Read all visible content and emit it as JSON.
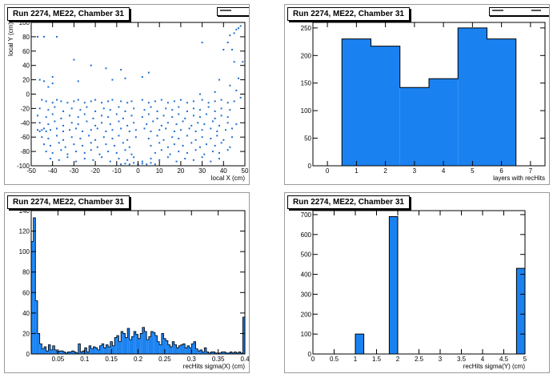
{
  "panels": [
    {
      "title": "Run 2274, ME22, Chamber 31"
    },
    {
      "title": "Run 2274, ME22, Chamber 31"
    },
    {
      "title": "Run 2274, ME22, Chamber 31"
    },
    {
      "title": "Run 2274, ME22, Chamber 31"
    }
  ],
  "colors": {
    "fill": "#1a82f0",
    "edge": "#000000",
    "frame": "#9a9a9a",
    "marker": "#1e6fd0"
  },
  "chart_data": [
    {
      "type": "scatter",
      "title": "Run 2274, ME22, Chamber 31",
      "xlabel": "local X (cm)",
      "ylabel": "local Y (cm)",
      "xlim": [
        -50,
        50
      ],
      "ylim": [
        -100,
        100
      ],
      "xticks": [
        -50,
        -40,
        -30,
        -20,
        -10,
        0,
        10,
        20,
        30,
        40,
        50
      ],
      "yticks": [
        -100,
        -80,
        -60,
        -40,
        -20,
        0,
        20,
        40,
        60,
        80,
        100
      ],
      "points": [
        [
          -47,
          80
        ],
        [
          -44,
          80
        ],
        [
          -38,
          80
        ],
        [
          -30,
          48
        ],
        [
          -22,
          40
        ],
        [
          -15,
          36
        ],
        [
          -8,
          34
        ],
        [
          5,
          30
        ],
        [
          30,
          72
        ],
        [
          40,
          62
        ],
        [
          44,
          62
        ],
        [
          45,
          85
        ],
        [
          46,
          90
        ],
        [
          47,
          92
        ],
        [
          48,
          95
        ],
        [
          43,
          82
        ],
        [
          42,
          72
        ],
        [
          45,
          45
        ],
        [
          47,
          22
        ],
        [
          49,
          45
        ],
        [
          -46,
          20
        ],
        [
          -44,
          18
        ],
        [
          -42,
          10
        ],
        [
          -40,
          15
        ],
        [
          -28,
          18
        ],
        [
          -12,
          20
        ],
        [
          -6,
          22
        ],
        [
          -40,
          24
        ],
        [
          2,
          24
        ],
        [
          38,
          20
        ],
        [
          43,
          12
        ],
        [
          46,
          5
        ],
        [
          48,
          -5
        ],
        [
          36,
          3
        ],
        [
          29,
          0
        ],
        [
          -45,
          -8
        ],
        [
          -43,
          -10
        ],
        [
          -40,
          -12
        ],
        [
          -38,
          -8
        ],
        [
          -36,
          -10
        ],
        [
          -33,
          -12
        ],
        [
          -30,
          -10
        ],
        [
          -28,
          -8
        ],
        [
          -25,
          -12
        ],
        [
          -22,
          -10
        ],
        [
          -20,
          -8
        ],
        [
          -17,
          -12
        ],
        [
          -14,
          -10
        ],
        [
          -12,
          -8
        ],
        [
          -8,
          -10
        ],
        [
          -5,
          -12
        ],
        [
          -3,
          -10
        ],
        [
          2,
          -8
        ],
        [
          5,
          -12
        ],
        [
          8,
          -10
        ],
        [
          11,
          -8
        ],
        [
          14,
          -12
        ],
        [
          17,
          -10
        ],
        [
          20,
          -8
        ],
        [
          23,
          -12
        ],
        [
          26,
          -10
        ],
        [
          30,
          -8
        ],
        [
          33,
          -12
        ],
        [
          36,
          -10
        ],
        [
          39,
          -8
        ],
        [
          42,
          -12
        ],
        [
          45,
          -10
        ],
        [
          -46,
          -20
        ],
        [
          -42,
          -22
        ],
        [
          -39,
          -18
        ],
        [
          -35,
          -24
        ],
        [
          -31,
          -20
        ],
        [
          -27,
          -22
        ],
        [
          -24,
          -18
        ],
        [
          -20,
          -24
        ],
        [
          -16,
          -20
        ],
        [
          -13,
          -22
        ],
        [
          -9,
          -18
        ],
        [
          -6,
          -24
        ],
        [
          -2,
          -20
        ],
        [
          3,
          -22
        ],
        [
          6,
          -18
        ],
        [
          9,
          -24
        ],
        [
          13,
          -20
        ],
        [
          16,
          -22
        ],
        [
          19,
          -18
        ],
        [
          23,
          -24
        ],
        [
          26,
          -20
        ],
        [
          29,
          -22
        ],
        [
          33,
          -18
        ],
        [
          36,
          -24
        ],
        [
          39,
          -20
        ],
        [
          43,
          -22
        ],
        [
          -47,
          -30
        ],
        [
          -43,
          -32
        ],
        [
          -40,
          -28
        ],
        [
          -36,
          -34
        ],
        [
          -32,
          -30
        ],
        [
          -28,
          -32
        ],
        [
          -25,
          -28
        ],
        [
          -21,
          -34
        ],
        [
          -17,
          -30
        ],
        [
          -14,
          -32
        ],
        [
          -10,
          -28
        ],
        [
          -7,
          -34
        ],
        [
          -3,
          -30
        ],
        [
          2,
          -32
        ],
        [
          5,
          -28
        ],
        [
          9,
          -34
        ],
        [
          12,
          -30
        ],
        [
          16,
          -32
        ],
        [
          19,
          -28
        ],
        [
          22,
          -34
        ],
        [
          26,
          -30
        ],
        [
          29,
          -32
        ],
        [
          32,
          -28
        ],
        [
          36,
          -34
        ],
        [
          39,
          -30
        ],
        [
          42,
          -32
        ],
        [
          -46,
          -40
        ],
        [
          -42,
          -42
        ],
        [
          -39,
          -38
        ],
        [
          -35,
          -44
        ],
        [
          -31,
          -40
        ],
        [
          -28,
          -42
        ],
        [
          -24,
          -38
        ],
        [
          -20,
          -44
        ],
        [
          -17,
          -40
        ],
        [
          -13,
          -42
        ],
        [
          -9,
          -38
        ],
        [
          -5,
          -44
        ],
        [
          -2,
          -40
        ],
        [
          4,
          -42
        ],
        [
          7,
          -38
        ],
        [
          11,
          -44
        ],
        [
          14,
          -40
        ],
        [
          18,
          -42
        ],
        [
          21,
          -38
        ],
        [
          25,
          -44
        ],
        [
          28,
          -40
        ],
        [
          31,
          -42
        ],
        [
          35,
          -38
        ],
        [
          38,
          -44
        ],
        [
          42,
          -40
        ],
        [
          46,
          -42
        ],
        [
          -47,
          -50
        ],
        [
          -46,
          -52
        ],
        [
          -45,
          -50
        ],
        [
          -44,
          -48
        ],
        [
          -43,
          -52
        ],
        [
          -41,
          -50
        ],
        [
          -38,
          -48
        ],
        [
          -35,
          -52
        ],
        [
          -32,
          -50
        ],
        [
          -29,
          -48
        ],
        [
          -26,
          -52
        ],
        [
          -22,
          -50
        ],
        [
          -19,
          -48
        ],
        [
          -15,
          -52
        ],
        [
          -12,
          -50
        ],
        [
          -8,
          -48
        ],
        [
          -4,
          -52
        ],
        [
          -1,
          -50
        ],
        [
          3,
          -48
        ],
        [
          6,
          -52
        ],
        [
          10,
          -50
        ],
        [
          13,
          -48
        ],
        [
          17,
          -52
        ],
        [
          20,
          -50
        ],
        [
          24,
          -48
        ],
        [
          27,
          -52
        ],
        [
          30,
          -50
        ],
        [
          34,
          -48
        ],
        [
          37,
          -52
        ],
        [
          41,
          -50
        ],
        [
          44,
          -48
        ],
        [
          -45,
          -60
        ],
        [
          -42,
          -62
        ],
        [
          -38,
          -58
        ],
        [
          -35,
          -64
        ],
        [
          -31,
          -60
        ],
        [
          -27,
          -62
        ],
        [
          -23,
          -58
        ],
        [
          -20,
          -64
        ],
        [
          -16,
          -60
        ],
        [
          -12,
          -62
        ],
        [
          -9,
          -58
        ],
        [
          -5,
          -64
        ],
        [
          -1,
          -60
        ],
        [
          5,
          -62
        ],
        [
          9,
          -58
        ],
        [
          12,
          -64
        ],
        [
          16,
          -60
        ],
        [
          19,
          -62
        ],
        [
          23,
          -58
        ],
        [
          27,
          -64
        ],
        [
          30,
          -60
        ],
        [
          34,
          -62
        ],
        [
          37,
          -58
        ],
        [
          40,
          -64
        ],
        [
          44,
          -60
        ],
        [
          -44,
          -70
        ],
        [
          -41,
          -72
        ],
        [
          -37,
          -68
        ],
        [
          -34,
          -74
        ],
        [
          -30,
          -70
        ],
        [
          -26,
          -72
        ],
        [
          -22,
          -68
        ],
        [
          -19,
          -74
        ],
        [
          -15,
          -70
        ],
        [
          -11,
          -72
        ],
        [
          -7,
          -68
        ],
        [
          -4,
          -74
        ],
        [
          6,
          -72
        ],
        [
          10,
          -68
        ],
        [
          14,
          -74
        ],
        [
          17,
          -70
        ],
        [
          21,
          -72
        ],
        [
          25,
          -68
        ],
        [
          29,
          -74
        ],
        [
          32,
          -70
        ],
        [
          36,
          -72
        ],
        [
          39,
          -68
        ],
        [
          43,
          -74
        ],
        [
          -43,
          -80
        ],
        [
          -40,
          -82
        ],
        [
          -36,
          -78
        ],
        [
          -33,
          -84
        ],
        [
          -29,
          -80
        ],
        [
          -25,
          -82
        ],
        [
          -22,
          -78
        ],
        [
          -18,
          -84
        ],
        [
          -14,
          -80
        ],
        [
          -10,
          -82
        ],
        [
          -6,
          -78
        ],
        [
          -3,
          -84
        ],
        [
          8,
          -82
        ],
        [
          11,
          -78
        ],
        [
          15,
          -84
        ],
        [
          19,
          -80
        ],
        [
          23,
          -82
        ],
        [
          27,
          -78
        ],
        [
          31,
          -84
        ],
        [
          35,
          -80
        ],
        [
          38,
          -82
        ],
        [
          42,
          -78
        ],
        [
          -41,
          -90
        ],
        [
          -37,
          -92
        ],
        [
          -33,
          -88
        ],
        [
          -29,
          -94
        ],
        [
          -25,
          -90
        ],
        [
          -21,
          -92
        ],
        [
          -17,
          -88
        ],
        [
          -13,
          -94
        ],
        [
          -9,
          -90
        ],
        [
          -5,
          -92
        ],
        [
          -2,
          -88
        ],
        [
          2,
          -94
        ],
        [
          6,
          -90
        ],
        [
          10,
          -92
        ],
        [
          14,
          -88
        ],
        [
          18,
          -94
        ],
        [
          22,
          -90
        ],
        [
          26,
          -92
        ],
        [
          30,
          -88
        ],
        [
          34,
          -94
        ],
        [
          38,
          -90
        ],
        [
          -8,
          -98
        ],
        [
          -6,
          -97
        ],
        [
          -4,
          -98
        ],
        [
          -2,
          -96
        ],
        [
          0,
          -98
        ],
        [
          2,
          -97
        ],
        [
          4,
          -98
        ],
        [
          6,
          -96
        ],
        [
          8,
          -98
        ]
      ]
    },
    {
      "type": "bar",
      "title": "Run 2274, ME22, Chamber 31",
      "xlabel": "layers with recHits",
      "ylabel": "",
      "xlim": [
        -0.5,
        7.5
      ],
      "ylim": [
        0,
        260
      ],
      "xticks": [
        0,
        1,
        2,
        3,
        4,
        5,
        6,
        7
      ],
      "yticks": [
        0,
        50,
        100,
        150,
        200,
        250
      ],
      "bin_width": 1,
      "centers": [
        1,
        2,
        3,
        4,
        5,
        6
      ],
      "values": [
        230,
        217,
        142,
        158,
        250,
        230
      ]
    },
    {
      "type": "bar",
      "title": "Run 2274, ME22, Chamber 31",
      "xlabel": "recHits sigma(X) (cm)",
      "ylabel": "",
      "xlim": [
        0,
        0.4
      ],
      "ylim": [
        0,
        140
      ],
      "xticks": [
        0.05,
        0.1,
        0.15,
        0.2,
        0.25,
        0.3,
        0.35,
        0.4
      ],
      "xticklabels": [
        "0.05",
        "0.1",
        "0.15",
        "0.2",
        "0.25",
        "0.3",
        "0.35",
        "0.4"
      ],
      "yticks": [
        0,
        20,
        40,
        60,
        80,
        100,
        120,
        140
      ],
      "bin_width": 0.004,
      "values": [
        110,
        133,
        52,
        20,
        10,
        5,
        7,
        3,
        9,
        4,
        8,
        4,
        2,
        3,
        3,
        2,
        1,
        2,
        2,
        3,
        2,
        1,
        10,
        2,
        3,
        6,
        2,
        8,
        5,
        7,
        6,
        4,
        8,
        10,
        6,
        9,
        7,
        12,
        8,
        16,
        18,
        12,
        22,
        20,
        16,
        25,
        14,
        17,
        22,
        19,
        15,
        20,
        26,
        22,
        14,
        17,
        22,
        21,
        18,
        12,
        9,
        20,
        15,
        13,
        9,
        7,
        12,
        9,
        6,
        8,
        9,
        10,
        6,
        8,
        6,
        10,
        12,
        5,
        3,
        4,
        2,
        6,
        2,
        1,
        2,
        2,
        1,
        1,
        1,
        2,
        2,
        1,
        1,
        2,
        1,
        2,
        1,
        2,
        1,
        36
      ]
    },
    {
      "type": "bar",
      "title": "Run 2274, ME22, Chamber 31",
      "xlabel": "recHits sigma(Y) (cm)",
      "ylabel": "",
      "xlim": [
        0,
        5
      ],
      "ylim": [
        0,
        720
      ],
      "xticks": [
        0,
        0.5,
        1,
        1.5,
        2,
        2.5,
        3,
        3.5,
        4,
        4.5,
        5
      ],
      "xticklabels": [
        "0",
        "0.5",
        "1",
        "1.5",
        "2",
        "2.5",
        "3",
        "3.5",
        "4",
        "4.5",
        "5"
      ],
      "yticks": [
        0,
        100,
        200,
        300,
        400,
        500,
        600,
        700
      ],
      "bin_width": 0.2,
      "lefts": [
        1.0,
        1.8,
        4.8
      ],
      "values": [
        100,
        690,
        430
      ]
    }
  ]
}
